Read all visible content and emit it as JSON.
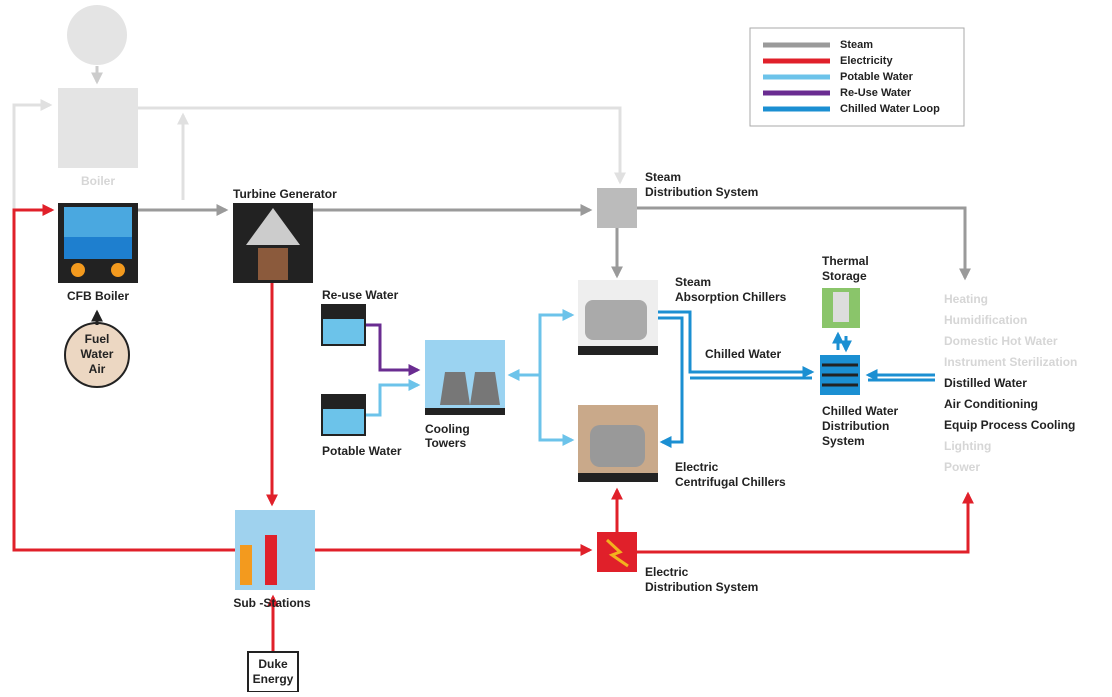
{
  "legend": [
    {
      "label": "Steam",
      "color": "#9a9a9a"
    },
    {
      "label": "Electricity",
      "color": "#e0202a"
    },
    {
      "label": "Potable Water",
      "color": "#6cc3ea"
    },
    {
      "label": "Re-Use Water",
      "color": "#6a2c91"
    },
    {
      "label": "Chilled Water Loop",
      "color": "#1b8fd2"
    }
  ],
  "nodes": {
    "boiler": [
      "Boiler"
    ],
    "cfb_boiler": [
      "CFB Boiler"
    ],
    "inputs": [
      "Fuel",
      "Water",
      "Air"
    ],
    "turbine": [
      "Turbine Generator"
    ],
    "steam_distribution": [
      "Steam",
      "Distribution System"
    ],
    "reuse_water": [
      "Re-use Water"
    ],
    "potable_water": [
      "Potable Water"
    ],
    "cooling_towers": [
      "Cooling",
      "Towers"
    ],
    "absorption_chillers": [
      "Steam",
      "Absorption Chillers"
    ],
    "thermal_storage": [
      "Thermal",
      "Storage"
    ],
    "chilled_water": [
      "Chilled Water"
    ],
    "chilled_distribution": [
      "Chilled Water",
      "Distribution",
      "System"
    ],
    "centrifugal_chillers": [
      "Electric",
      "Centrifugal Chillers"
    ],
    "substations": [
      "Sub -Stations"
    ],
    "duke": [
      "Duke",
      "Energy"
    ],
    "electric_distribution": [
      "Electric",
      "Distribution System"
    ]
  },
  "uses": [
    "Heating",
    "Humidification",
    "Domestic Hot Water",
    "Instrument Sterilization",
    "Distilled Water",
    "Air Conditioning",
    "Equip Process Cooling",
    "Lighting",
    "Power"
  ]
}
